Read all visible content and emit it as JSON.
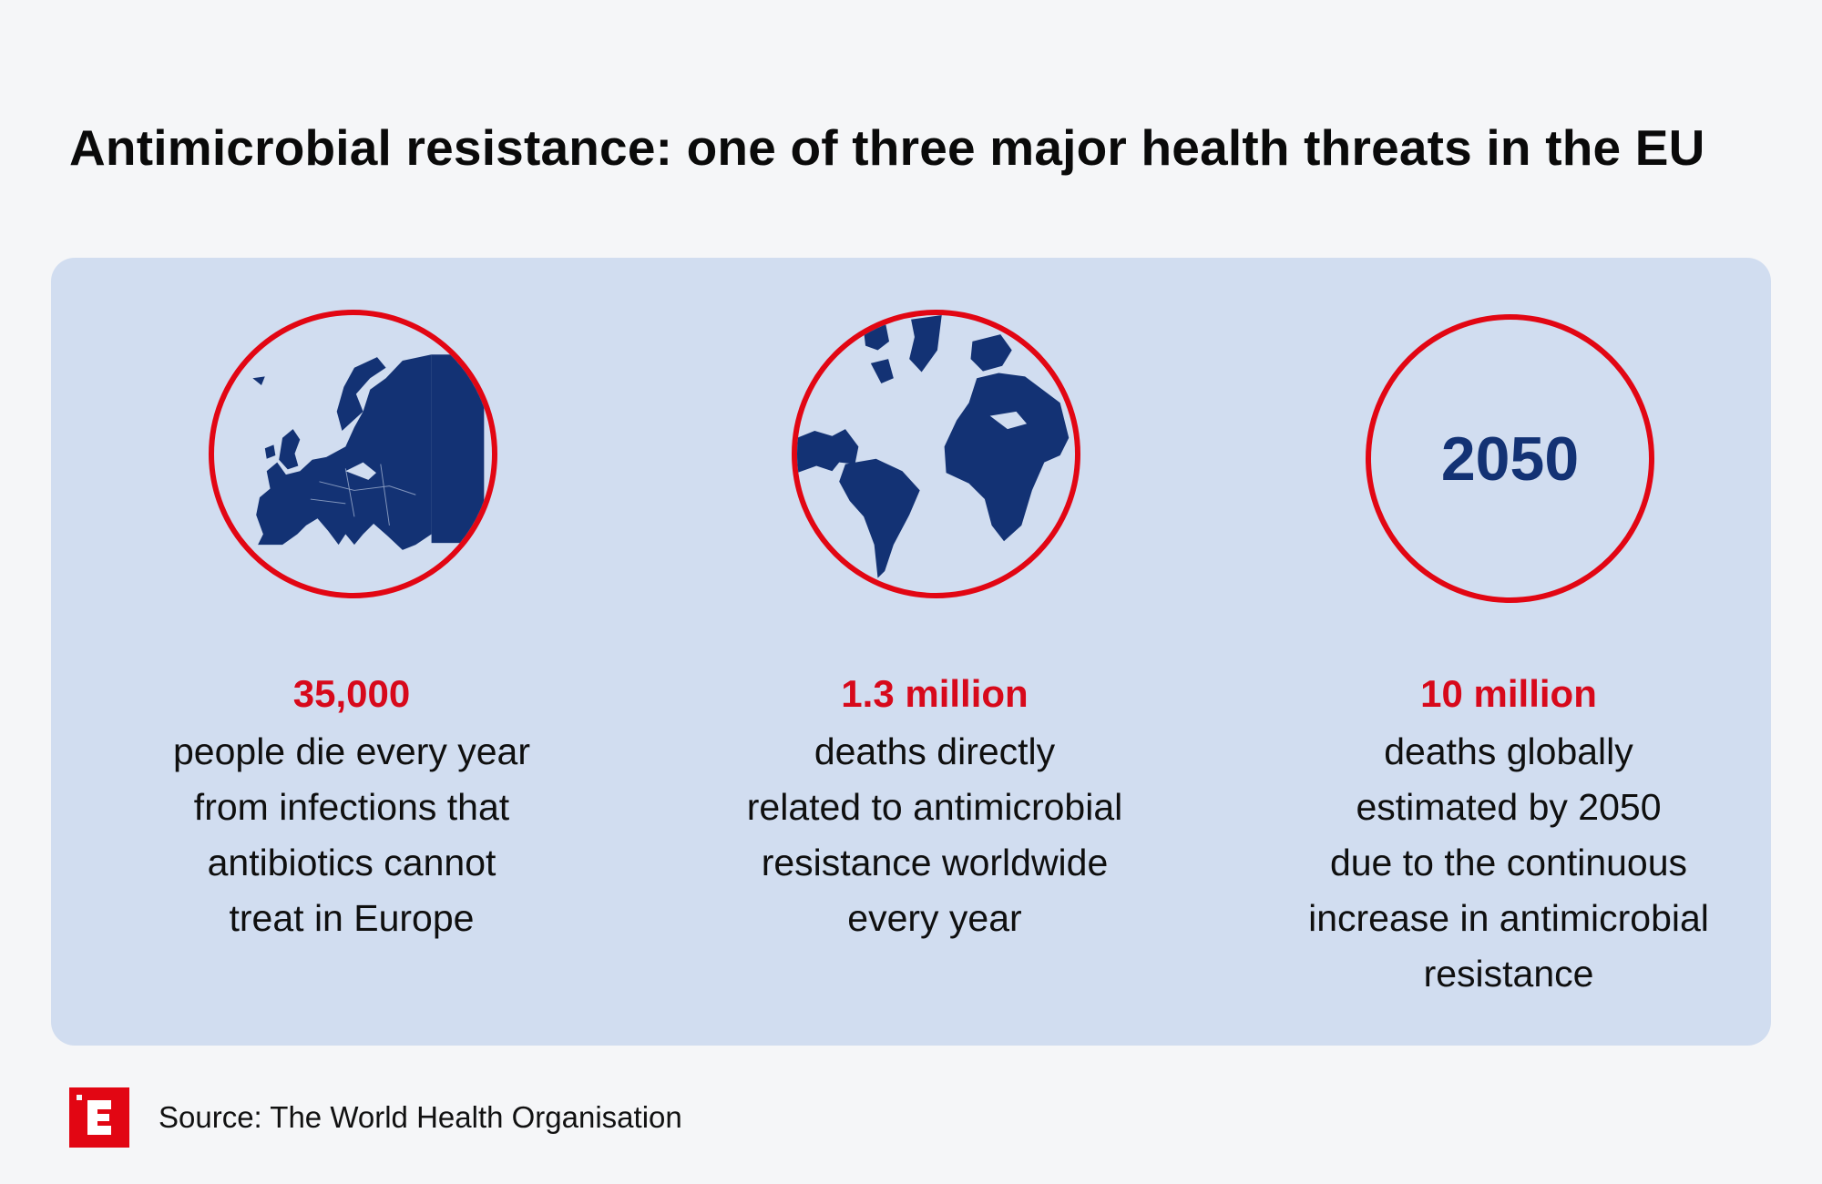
{
  "title": "Antimicrobial resistance: one of three major health threats in the EU",
  "colors": {
    "accent": "#e20613",
    "navy": "#133274",
    "panel": "#d1ddf0"
  },
  "cards": [
    {
      "icon": "europe-map-icon",
      "stat": "35,000",
      "lines": [
        "people die every year",
        "from infections that",
        "antibiotics cannot",
        "treat in Europe"
      ]
    },
    {
      "icon": "globe-icon",
      "stat": "1.3 million",
      "lines": [
        "deaths directly",
        "related to antimicrobial",
        "resistance worldwide",
        "every year"
      ]
    },
    {
      "icon": "year-badge",
      "badge_text": "2050",
      "stat": "10 million",
      "lines": [
        "deaths globally",
        "estimated by 2050",
        "due to the continuous",
        "increase in antimicrobial",
        "resistance"
      ]
    }
  ],
  "footer": {
    "logo": "E",
    "source": "Source: The World Health Organisation"
  }
}
